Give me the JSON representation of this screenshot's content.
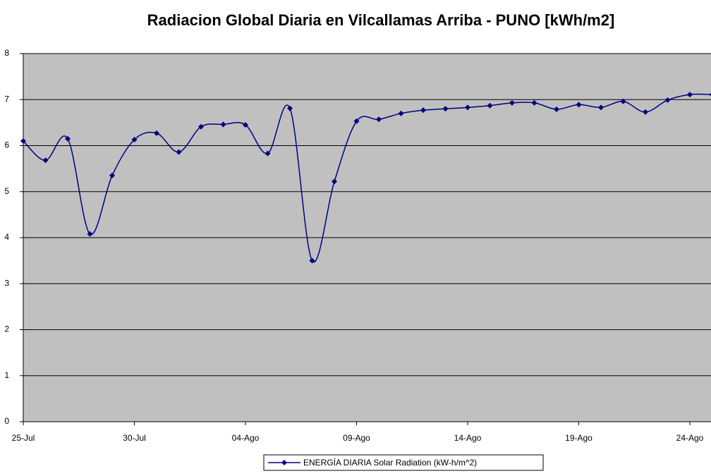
{
  "chart_data": {
    "type": "line",
    "title": "Radiacion Global Diaria en Vilcallamas Arriba - PUNO [kWh/m2]",
    "categories": [
      "25-Jul",
      null,
      null,
      null,
      null,
      "30-Jul",
      null,
      null,
      null,
      null,
      "04-Ago",
      null,
      null,
      null,
      null,
      "09-Ago",
      null,
      null,
      null,
      null,
      "14-Ago",
      null,
      null,
      null,
      null,
      "19-Ago",
      null,
      null,
      null,
      null,
      "24-Ago",
      null
    ],
    "series": [
      {
        "name": "ENERGÍA DIARIA Solar Radiation (kW-h/m^2)",
        "color": "#000080",
        "values": [
          6.1,
          5.68,
          6.15,
          4.08,
          5.35,
          6.13,
          6.27,
          5.86,
          6.41,
          6.46,
          6.45,
          5.83,
          6.81,
          3.5,
          5.22,
          6.53,
          6.57,
          6.7,
          6.77,
          6.8,
          6.83,
          6.87,
          6.93,
          6.93,
          6.79,
          6.89,
          6.83,
          6.96,
          6.73,
          6.99,
          7.11,
          7.11
        ]
      }
    ],
    "ylim": [
      0,
      8
    ],
    "yticks": [
      0,
      1,
      2,
      3,
      4,
      5,
      6,
      7,
      8
    ],
    "grid": true,
    "legend": "bottom"
  }
}
